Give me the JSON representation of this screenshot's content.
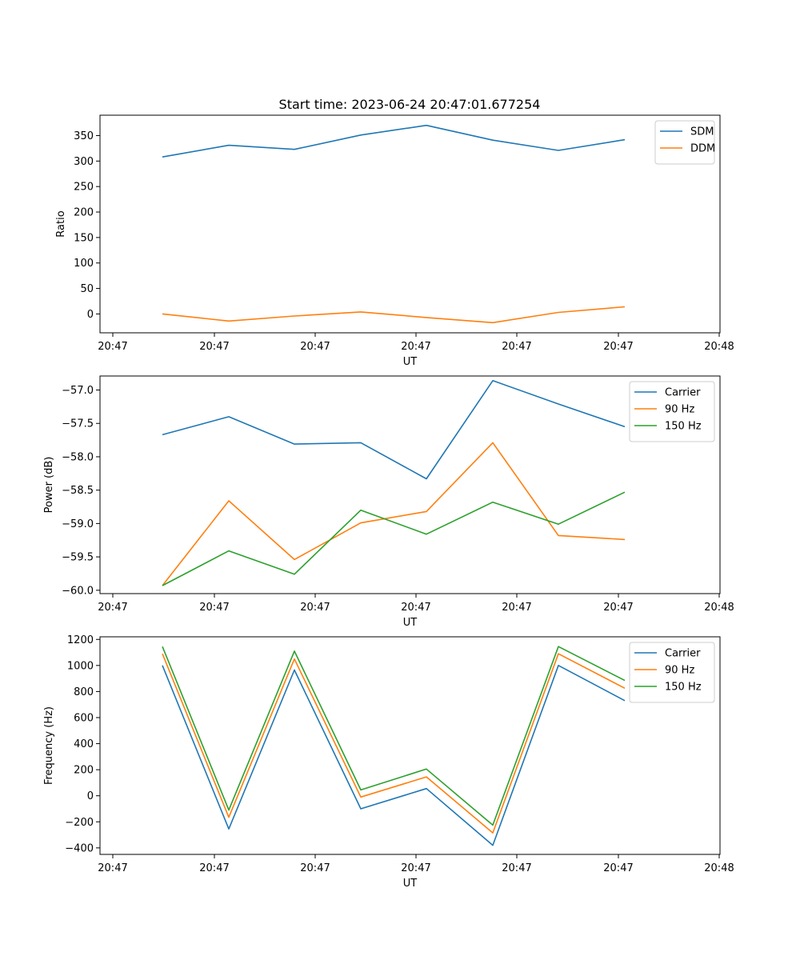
{
  "figure_title": "Start time: 2023-06-24 20:47:01.677254",
  "colors": {
    "blue": "#1f77b4",
    "orange": "#ff7f0e",
    "green": "#2ca02c"
  },
  "chart_data": [
    {
      "type": "line",
      "title": "Start time: 2023-06-24 20:47:01.677254",
      "xlabel": "UT",
      "ylabel": "Ratio",
      "x_tick_labels": [
        "20:47",
        "20:47",
        "20:47",
        "20:47",
        "20:47",
        "20:47",
        "20:48"
      ],
      "y_ticks": [
        0,
        50,
        100,
        150,
        200,
        250,
        300,
        350
      ],
      "ylim": [
        -37,
        390
      ],
      "legend_position": "top-right",
      "grid": false,
      "series": [
        {
          "name": "SDM",
          "color": "#1f77b4",
          "values": [
            308,
            331,
            323,
            351,
            370,
            341,
            321,
            342
          ]
        },
        {
          "name": "DDM",
          "color": "#ff7f0e",
          "values": [
            0,
            -14,
            -4,
            4,
            -7,
            -17,
            3,
            14
          ]
        }
      ]
    },
    {
      "type": "line",
      "title": "",
      "xlabel": "UT",
      "ylabel": "Power (dB)",
      "x_tick_labels": [
        "20:47",
        "20:47",
        "20:47",
        "20:47",
        "20:47",
        "20:47",
        "20:48"
      ],
      "y_ticks": [
        -60.0,
        -59.5,
        -59.0,
        -58.5,
        -58.0,
        -57.5,
        -57.0
      ],
      "y_tick_labels": [
        "−60.0",
        "−59.5",
        "−59.0",
        "−58.5",
        "−58.0",
        "−57.5",
        "−57.0"
      ],
      "ylim": [
        -60.05,
        -56.79
      ],
      "legend_position": "top-right",
      "grid": false,
      "series": [
        {
          "name": "Carrier",
          "color": "#1f77b4",
          "values": [
            -57.67,
            -57.4,
            -57.81,
            -57.79,
            -58.33,
            -56.86,
            -57.21,
            -57.55
          ]
        },
        {
          "name": "90 Hz",
          "color": "#ff7f0e",
          "values": [
            -59.93,
            -58.66,
            -59.54,
            -58.99,
            -58.82,
            -57.79,
            -59.18,
            -59.24
          ]
        },
        {
          "name": "150 Hz",
          "color": "#2ca02c",
          "values": [
            -59.93,
            -59.41,
            -59.76,
            -58.8,
            -59.16,
            -58.68,
            -59.01,
            -58.53
          ]
        }
      ]
    },
    {
      "type": "line",
      "title": "",
      "xlabel": "UT",
      "ylabel": "Frequency (Hz)",
      "x_tick_labels": [
        "20:47",
        "20:47",
        "20:47",
        "20:47",
        "20:47",
        "20:47",
        "20:48"
      ],
      "y_ticks": [
        -400,
        -200,
        0,
        200,
        400,
        600,
        800,
        1000,
        1200
      ],
      "y_tick_labels": [
        "−400",
        "−200",
        "0",
        "200",
        "400",
        "600",
        "800",
        "1000",
        "1200"
      ],
      "ylim": [
        -450,
        1220
      ],
      "legend_position": "top-right",
      "grid": false,
      "series": [
        {
          "name": "Carrier",
          "color": "#1f77b4",
          "values": [
            1000,
            -255,
            965,
            -100,
            55,
            -380,
            1000,
            730
          ]
        },
        {
          "name": "90 Hz",
          "color": "#ff7f0e",
          "values": [
            1090,
            -165,
            1050,
            -10,
            145,
            -285,
            1090,
            825
          ]
        },
        {
          "name": "150 Hz",
          "color": "#2ca02c",
          "values": [
            1145,
            -110,
            1110,
            45,
            205,
            -225,
            1145,
            885
          ]
        }
      ]
    }
  ]
}
